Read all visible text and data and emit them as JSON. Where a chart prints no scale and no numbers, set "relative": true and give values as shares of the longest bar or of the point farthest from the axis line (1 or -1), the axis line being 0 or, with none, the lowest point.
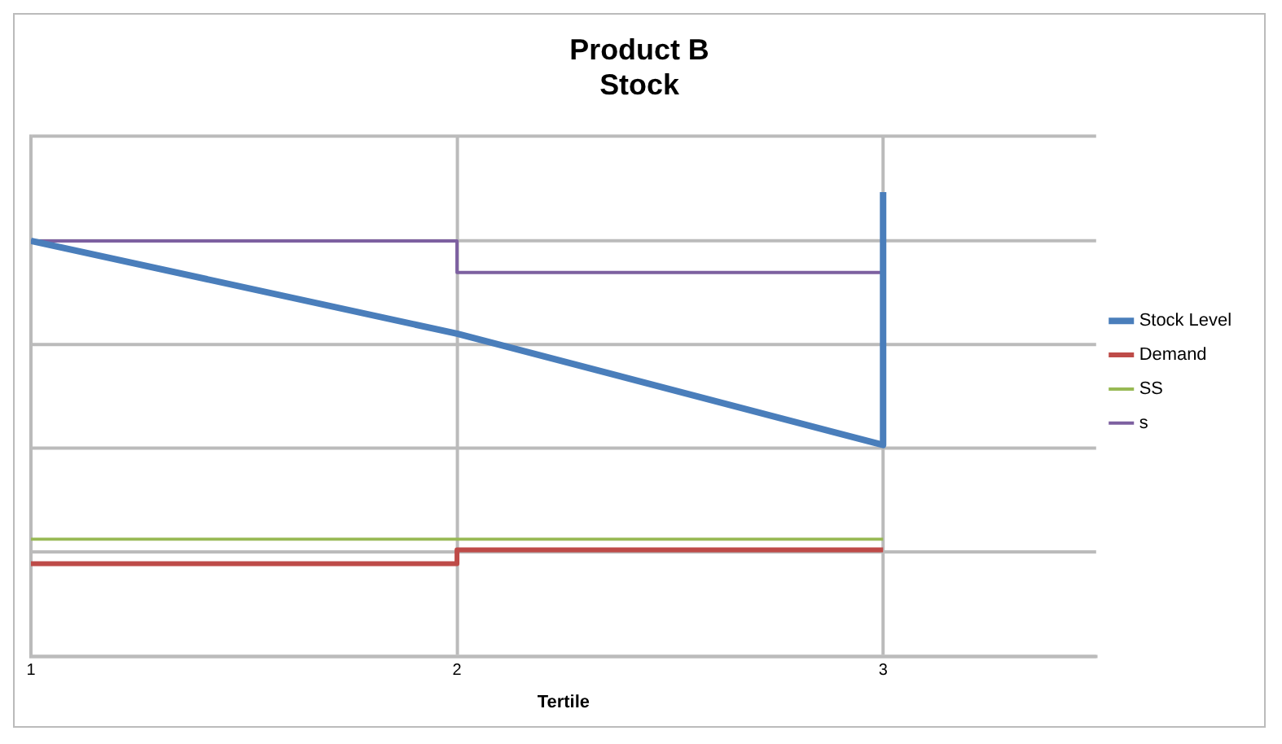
{
  "chart_data": {
    "type": "line",
    "title": "Product B\nStock",
    "xlabel": "Tertile",
    "relative": true,
    "xlim": [
      1,
      3.5
    ],
    "xticks": [
      1,
      2,
      3
    ],
    "grid": true,
    "legend": "right",
    "marker": "none",
    "series": [
      {
        "name": "Stock Level",
        "type": "line",
        "color": "#4a7ebb",
        "x": [
          1,
          2,
          3,
          3
        ],
        "values": [
          0.895,
          0.695,
          0.455,
          1
        ]
      },
      {
        "name": "Demand",
        "type": "step",
        "color": "#be4b48",
        "x": [
          1,
          2,
          3
        ],
        "values": [
          0.199,
          0.229,
          0.229
        ]
      },
      {
        "name": "SS",
        "type": "line",
        "color": "#98b954",
        "x": [
          1,
          2,
          3
        ],
        "values": [
          0.252,
          0.252,
          0.252
        ]
      },
      {
        "name": "s",
        "type": "step",
        "color": "#7d60a0",
        "x": [
          1,
          2,
          3
        ],
        "values": [
          0.895,
          0.827,
          0.827
        ]
      }
    ]
  }
}
